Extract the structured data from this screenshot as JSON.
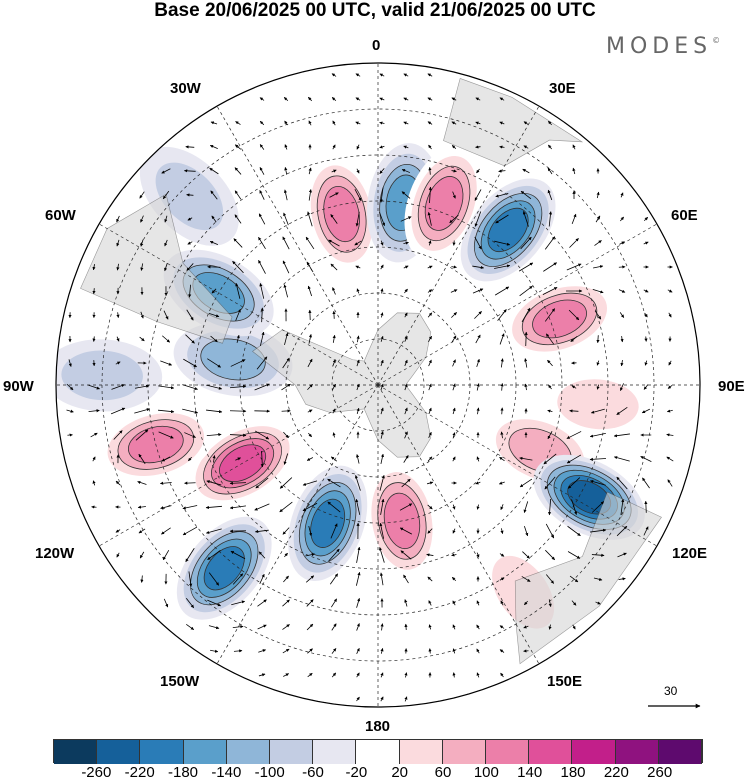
{
  "title": "Base 20/06/2025 00 UTC, valid 21/06/2025 00 UTC",
  "brand": "MODES",
  "brand_mark": "©",
  "longitude_labels": {
    "n0": "0",
    "n30e": "30E",
    "n60e": "60E",
    "n90e": "90E",
    "n120e": "120E",
    "n150e": "150E",
    "n180": "180",
    "n150w": "150W",
    "n120w": "120W",
    "n90w": "90W",
    "n60w": "60W",
    "n30w": "30W"
  },
  "reference_vector": {
    "value": "30",
    "icon": "arrow-right-icon"
  },
  "colorbar": {
    "colors": [
      "#0c3a5e",
      "#15609a",
      "#2a7cb7",
      "#5a9fcb",
      "#8fb6d8",
      "#c3cde3",
      "#e7e7f1",
      "#ffffff",
      "#fbdbde",
      "#f4aec0",
      "#ec7fa9",
      "#e0509a",
      "#c21f8a",
      "#8f127f",
      "#5e0a6e"
    ],
    "tick_labels": [
      "-260",
      "-220",
      "-180",
      "-140",
      "-100",
      "-60",
      "-20",
      "20",
      "60",
      "100",
      "140",
      "180",
      "220",
      "260"
    ]
  },
  "anomalies": [
    {
      "lon": -12,
      "lat": -52,
      "value": 120
    },
    {
      "lon": 8,
      "lat": -50,
      "value": -140
    },
    {
      "lon": 20,
      "lat": -48,
      "value": 120
    },
    {
      "lon": 40,
      "lat": -46,
      "value": -180
    },
    {
      "lon": 70,
      "lat": -48,
      "value": 140
    },
    {
      "lon": 95,
      "lat": -42,
      "value": 60
    },
    {
      "lon": 112,
      "lat": -52,
      "value": 100
    },
    {
      "lon": 118,
      "lat": -38,
      "value": -240
    },
    {
      "lon": 145,
      "lat": -35,
      "value": 60
    },
    {
      "lon": 170,
      "lat": -60,
      "value": 140
    },
    {
      "lon": -160,
      "lat": -58,
      "value": -180
    },
    {
      "lon": -140,
      "lat": -38,
      "value": -160
    },
    {
      "lon": -120,
      "lat": -56,
      "value": 160
    },
    {
      "lon": -105,
      "lat": -40,
      "value": 120
    },
    {
      "lon": -80,
      "lat": -58,
      "value": -100
    },
    {
      "lon": -60,
      "lat": -50,
      "value": -120
    },
    {
      "lon": -45,
      "lat": -32,
      "value": -60
    },
    {
      "lon": -88,
      "lat": -30,
      "value": -60
    }
  ]
}
